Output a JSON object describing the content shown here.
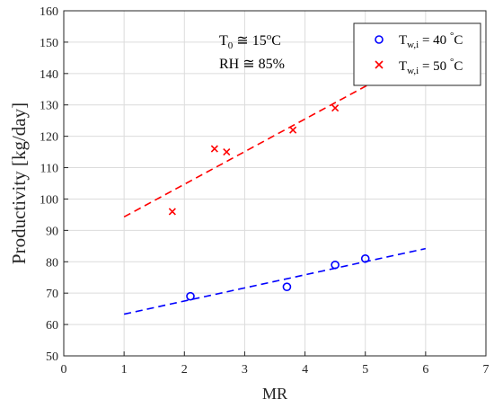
{
  "chart_data": {
    "type": "scatter",
    "xlabel": "MR",
    "ylabel": "Productivity [kg/day]",
    "xlim": [
      0,
      7
    ],
    "ylim": [
      50,
      160
    ],
    "xticks": [
      "0",
      "1",
      "2",
      "3",
      "4",
      "5",
      "6",
      "7"
    ],
    "yticks": [
      "50",
      "60",
      "70",
      "80",
      "90",
      "100",
      "110",
      "120",
      "130",
      "140",
      "150",
      "160"
    ],
    "grid": true,
    "legend_position": "top-right",
    "annotation": {
      "line1": {
        "base": "T",
        "sub": "0",
        "rest": " ≅ 15",
        "sup": "o",
        "tail": "C"
      },
      "line2": "RH ≅ 85%"
    },
    "series": [
      {
        "legend": {
          "base": "T",
          "sub": "w,i",
          "rest": " = 40 ",
          "sup": "°",
          "tail": "C"
        },
        "marker": "circle",
        "color": "#0000ff",
        "points": [
          {
            "x": 2.1,
            "y": 69
          },
          {
            "x": 3.7,
            "y": 72
          },
          {
            "x": 4.5,
            "y": 79
          },
          {
            "x": 5.0,
            "y": 81
          }
        ],
        "fit": {
          "x": [
            1,
            6
          ],
          "y": [
            63.3,
            84.2
          ]
        }
      },
      {
        "legend": {
          "base": "T",
          "sub": "w,i",
          "rest": " = 50 ",
          "sup": "°",
          "tail": "C"
        },
        "marker": "x",
        "color": "#ff0000",
        "points": [
          {
            "x": 1.8,
            "y": 96
          },
          {
            "x": 2.5,
            "y": 116
          },
          {
            "x": 2.7,
            "y": 115
          },
          {
            "x": 3.8,
            "y": 122
          },
          {
            "x": 4.5,
            "y": 129
          }
        ],
        "fit": {
          "x": [
            1,
            6
          ],
          "y": [
            94.3,
            146.3
          ]
        }
      }
    ]
  }
}
